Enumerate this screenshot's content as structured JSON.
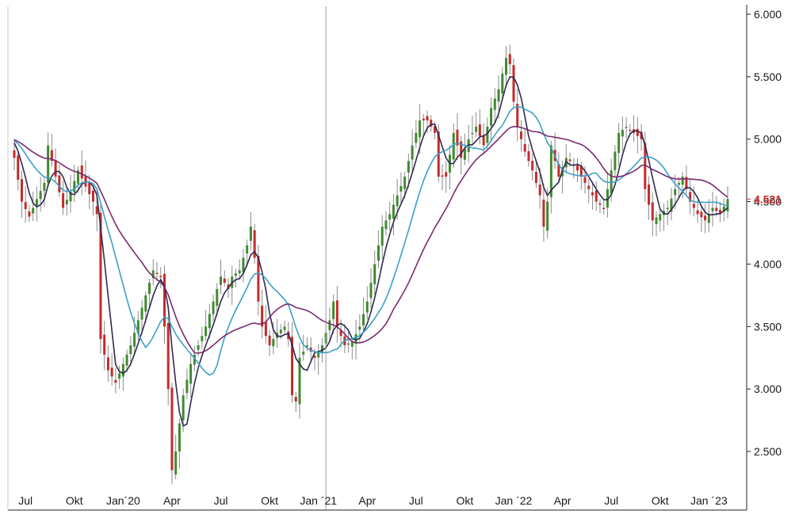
{
  "colors": {
    "up": "#3f8a2e",
    "down": "#c62a2a",
    "ma_short": "#2f2a4f",
    "ma_mid": "#3aa0c8",
    "ma_long": "#7a2a6e",
    "last_price": "#c62a2a",
    "axis": "#222222",
    "crosshair": "#9a9a9a"
  },
  "chart_data": {
    "type": "candlestick",
    "title": "",
    "xlabel": "",
    "ylabel": "",
    "ylim": [
      2150,
      6100
    ],
    "y_ticks": [
      2500,
      3000,
      3500,
      4000,
      4500,
      5000,
      5500,
      6000
    ],
    "y_tick_labels": [
      "2.500",
      "3.000",
      "3.500",
      "4.000",
      "4.500",
      "5.000",
      "5.500",
      "6.000"
    ],
    "x_labels": [
      "Jul",
      "Okt",
      "Jan´20",
      "Apr",
      "Jul",
      "Okt",
      "Jan ´21",
      "Apr",
      "Jul",
      "Okt",
      "Jan ´22",
      "Apr",
      "Jul",
      "Okt",
      "Jan ´23"
    ],
    "x_label_week": [
      3,
      16,
      29,
      42,
      55,
      68,
      81,
      94,
      107,
      120,
      133,
      146,
      159,
      172,
      185
    ],
    "crosshair_week": 83,
    "last_price": 4521,
    "last_price_label": "4.521",
    "grid": false,
    "anchors": [
      [
        0,
        4850
      ],
      [
        2,
        4500
      ],
      [
        4,
        4380
      ],
      [
        6,
        4520
      ],
      [
        8,
        4650
      ],
      [
        9,
        4950
      ],
      [
        11,
        4700
      ],
      [
        13,
        4450
      ],
      [
        15,
        4580
      ],
      [
        17,
        4750
      ],
      [
        19,
        4620
      ],
      [
        21,
        4500
      ],
      [
        22,
        4400
      ],
      [
        23,
        3400
      ],
      [
        25,
        3150
      ],
      [
        27,
        3050
      ],
      [
        29,
        3200
      ],
      [
        31,
        3350
      ],
      [
        33,
        3550
      ],
      [
        35,
        3750
      ],
      [
        37,
        3950
      ],
      [
        39,
        3900
      ],
      [
        40,
        3500
      ],
      [
        41,
        3000
      ],
      [
        42,
        2350
      ],
      [
        43,
        2500
      ],
      [
        45,
        2950
      ],
      [
        47,
        3200
      ],
      [
        49,
        3350
      ],
      [
        51,
        3500
      ],
      [
        53,
        3700
      ],
      [
        55,
        3900
      ],
      [
        57,
        3800
      ],
      [
        58,
        3900
      ],
      [
        60,
        3950
      ],
      [
        62,
        4150
      ],
      [
        63,
        4300
      ],
      [
        64,
        4050
      ],
      [
        65,
        3700
      ],
      [
        66,
        3500
      ],
      [
        68,
        3350
      ],
      [
        70,
        3450
      ],
      [
        72,
        3500
      ],
      [
        73,
        3400
      ],
      [
        74,
        2950
      ],
      [
        75,
        2900
      ],
      [
        76,
        3250
      ],
      [
        78,
        3350
      ],
      [
        80,
        3250
      ],
      [
        82,
        3350
      ],
      [
        84,
        3550
      ],
      [
        85,
        3700
      ],
      [
        86,
        3500
      ],
      [
        88,
        3350
      ],
      [
        90,
        3380
      ],
      [
        92,
        3500
      ],
      [
        94,
        3700
      ],
      [
        96,
        4000
      ],
      [
        98,
        4300
      ],
      [
        100,
        4400
      ],
      [
        102,
        4550
      ],
      [
        104,
        4700
      ],
      [
        106,
        4950
      ],
      [
        108,
        5150
      ],
      [
        110,
        5150
      ],
      [
        112,
        5050
      ],
      [
        113,
        4700
      ],
      [
        115,
        4700
      ],
      [
        117,
        5050
      ],
      [
        119,
        4850
      ],
      [
        121,
        5000
      ],
      [
        123,
        5100
      ],
      [
        125,
        4950
      ],
      [
        127,
        5250
      ],
      [
        129,
        5400
      ],
      [
        131,
        5650
      ],
      [
        132,
        5600
      ],
      [
        133,
        5300
      ],
      [
        134,
        5100
      ],
      [
        136,
        4900
      ],
      [
        138,
        4750
      ],
      [
        140,
        4550
      ],
      [
        141,
        4300
      ],
      [
        142,
        4500
      ],
      [
        143,
        4950
      ],
      [
        145,
        4700
      ],
      [
        147,
        4850
      ],
      [
        149,
        4800
      ],
      [
        151,
        4700
      ],
      [
        153,
        4600
      ],
      [
        155,
        4500
      ],
      [
        157,
        4450
      ],
      [
        158,
        4600
      ],
      [
        159,
        4750
      ],
      [
        161,
        5050
      ],
      [
        163,
        5100
      ],
      [
        165,
        5050
      ],
      [
        167,
        5000
      ],
      [
        168,
        4600
      ],
      [
        170,
        4350
      ],
      [
        172,
        4400
      ],
      [
        174,
        4450
      ],
      [
        176,
        4600
      ],
      [
        178,
        4700
      ],
      [
        180,
        4500
      ],
      [
        182,
        4400
      ],
      [
        184,
        4350
      ],
      [
        186,
        4450
      ],
      [
        188,
        4400
      ],
      [
        190,
        4521
      ]
    ],
    "series": [
      {
        "key": "ma_short",
        "period": 5
      },
      {
        "key": "ma_mid",
        "period": 13
      },
      {
        "key": "ma_long",
        "period": 26
      }
    ]
  }
}
